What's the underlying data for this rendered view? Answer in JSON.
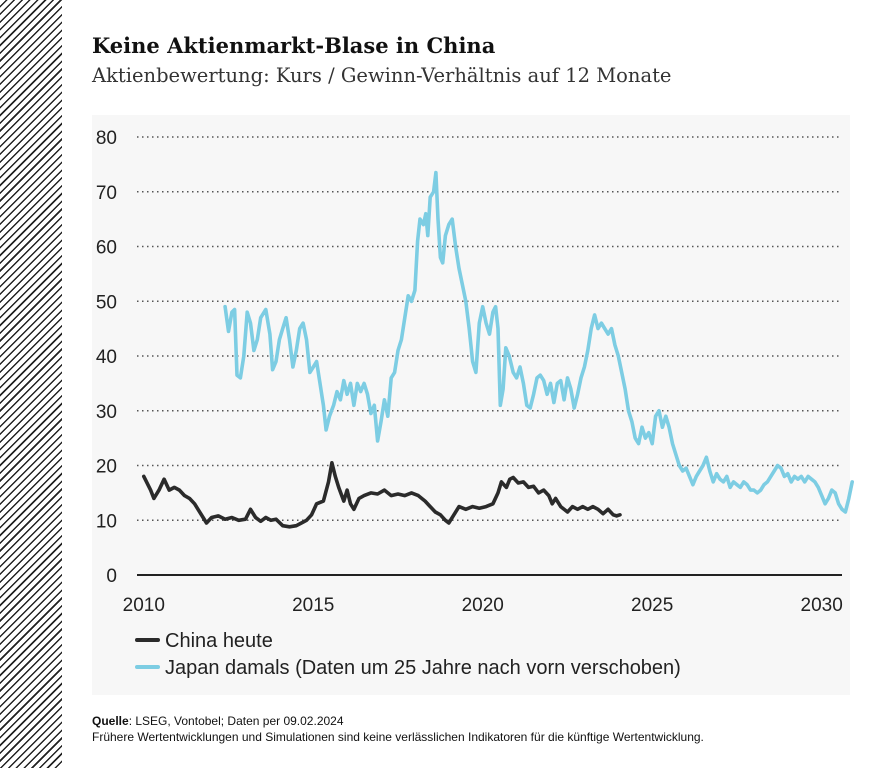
{
  "title": "Keine Aktienmarkt-Blase in China",
  "subtitle": "Aktienbewertung: Kurs / Gewinn-Verhältnis auf 12 Monate",
  "source_label": "Quelle",
  "source_text": ": LSEG, Vontobel; Daten per 09.02.2024",
  "disclaimer": "Frühere Wertentwicklungen und Simulationen sind keine verlässlichen Indikatoren für die künftige Wertentwicklung.",
  "colors": {
    "china": "#2b2b2b",
    "japan": "#7dcde3",
    "grid": "#555555",
    "background": "#f7f7f7"
  },
  "chart_data": {
    "type": "line",
    "xlabel": "",
    "ylabel": "",
    "xlim": [
      2009.8,
      2030.6
    ],
    "ylim": [
      0,
      80
    ],
    "x_ticks": [
      2010,
      2015,
      2020,
      2025,
      2030
    ],
    "x_tick_labels": [
      "2010",
      "2015",
      "2020",
      "2025",
      "2030"
    ],
    "y_ticks": [
      0,
      10,
      20,
      30,
      40,
      50,
      60,
      70,
      80
    ],
    "y_tick_labels": [
      "0",
      "10",
      "20",
      "30",
      "40",
      "50",
      "60",
      "70",
      "80"
    ],
    "grid": "horizontal dotted",
    "legend_position": "bottom-left",
    "series": [
      {
        "name": "China heute",
        "color": "#2b2b2b",
        "points": [
          [
            2010.0,
            18
          ],
          [
            2010.2,
            15.5
          ],
          [
            2010.3,
            14
          ],
          [
            2010.45,
            15.5
          ],
          [
            2010.6,
            17.5
          ],
          [
            2010.75,
            15.5
          ],
          [
            2010.9,
            16
          ],
          [
            2011.05,
            15.5
          ],
          [
            2011.2,
            14.5
          ],
          [
            2011.35,
            14
          ],
          [
            2011.5,
            13
          ],
          [
            2011.6,
            12
          ],
          [
            2011.75,
            10.5
          ],
          [
            2011.85,
            9.5
          ],
          [
            2012.0,
            10.5
          ],
          [
            2012.2,
            10.8
          ],
          [
            2012.4,
            10.2
          ],
          [
            2012.6,
            10.5
          ],
          [
            2012.8,
            10
          ],
          [
            2013.0,
            10.2
          ],
          [
            2013.15,
            12
          ],
          [
            2013.3,
            10.5
          ],
          [
            2013.45,
            9.8
          ],
          [
            2013.6,
            10.5
          ],
          [
            2013.75,
            10
          ],
          [
            2013.9,
            10.2
          ],
          [
            2014.1,
            9
          ],
          [
            2014.3,
            8.8
          ],
          [
            2014.5,
            9
          ],
          [
            2014.65,
            9.5
          ],
          [
            2014.8,
            10
          ],
          [
            2014.95,
            11
          ],
          [
            2015.1,
            13
          ],
          [
            2015.3,
            13.5
          ],
          [
            2015.45,
            17
          ],
          [
            2015.55,
            20.5
          ],
          [
            2015.65,
            18
          ],
          [
            2015.75,
            16
          ],
          [
            2015.9,
            13.5
          ],
          [
            2016.0,
            15.5
          ],
          [
            2016.1,
            13
          ],
          [
            2016.2,
            12
          ],
          [
            2016.35,
            14
          ],
          [
            2016.5,
            14.5
          ],
          [
            2016.7,
            15
          ],
          [
            2016.9,
            14.8
          ],
          [
            2017.1,
            15.5
          ],
          [
            2017.3,
            14.5
          ],
          [
            2017.5,
            14.8
          ],
          [
            2017.7,
            14.5
          ],
          [
            2017.9,
            15
          ],
          [
            2018.1,
            14.5
          ],
          [
            2018.3,
            13.5
          ],
          [
            2018.45,
            12.5
          ],
          [
            2018.6,
            11.5
          ],
          [
            2018.75,
            11
          ],
          [
            2018.9,
            10
          ],
          [
            2019.0,
            9.5
          ],
          [
            2019.15,
            11
          ],
          [
            2019.3,
            12.5
          ],
          [
            2019.5,
            12
          ],
          [
            2019.7,
            12.5
          ],
          [
            2019.9,
            12.2
          ],
          [
            2020.1,
            12.5
          ],
          [
            2020.3,
            13
          ],
          [
            2020.45,
            15
          ],
          [
            2020.55,
            17
          ],
          [
            2020.7,
            16
          ],
          [
            2020.8,
            17.5
          ],
          [
            2020.9,
            17.8
          ],
          [
            2021.05,
            16.8
          ],
          [
            2021.2,
            17
          ],
          [
            2021.35,
            16
          ],
          [
            2021.5,
            16.2
          ],
          [
            2021.65,
            15
          ],
          [
            2021.8,
            15.5
          ],
          [
            2021.95,
            14.5
          ],
          [
            2022.05,
            13
          ],
          [
            2022.15,
            14
          ],
          [
            2022.3,
            12.5
          ],
          [
            2022.5,
            11.5
          ],
          [
            2022.65,
            12.5
          ],
          [
            2022.8,
            12
          ],
          [
            2022.95,
            12.5
          ],
          [
            2023.1,
            12
          ],
          [
            2023.25,
            12.5
          ],
          [
            2023.4,
            12
          ],
          [
            2023.55,
            11.2
          ],
          [
            2023.7,
            12
          ],
          [
            2023.85,
            11
          ],
          [
            2023.95,
            10.8
          ],
          [
            2024.05,
            11
          ]
        ]
      },
      {
        "name": "Japan damals (Daten um 25 Jahre nach vorn verschoben)",
        "color": "#7dcde3",
        "points": [
          [
            2012.4,
            49
          ],
          [
            2012.5,
            44.5
          ],
          [
            2012.6,
            48
          ],
          [
            2012.68,
            48.5
          ],
          [
            2012.75,
            36.5
          ],
          [
            2012.85,
            36
          ],
          [
            2012.95,
            40
          ],
          [
            2013.05,
            48
          ],
          [
            2013.15,
            46
          ],
          [
            2013.25,
            41
          ],
          [
            2013.35,
            43
          ],
          [
            2013.45,
            47
          ],
          [
            2013.6,
            48.5
          ],
          [
            2013.72,
            44
          ],
          [
            2013.8,
            37.5
          ],
          [
            2013.9,
            39
          ],
          [
            2014.0,
            43
          ],
          [
            2014.1,
            45
          ],
          [
            2014.2,
            47
          ],
          [
            2014.3,
            43
          ],
          [
            2014.4,
            38
          ],
          [
            2014.5,
            41
          ],
          [
            2014.6,
            45
          ],
          [
            2014.7,
            46
          ],
          [
            2014.8,
            43
          ],
          [
            2014.9,
            37
          ],
          [
            2015.0,
            38
          ],
          [
            2015.1,
            39
          ],
          [
            2015.2,
            35
          ],
          [
            2015.3,
            31
          ],
          [
            2015.38,
            26.5
          ],
          [
            2015.48,
            29
          ],
          [
            2015.6,
            31
          ],
          [
            2015.7,
            33.5
          ],
          [
            2015.8,
            32
          ],
          [
            2015.9,
            35.5
          ],
          [
            2016.0,
            33
          ],
          [
            2016.1,
            35
          ],
          [
            2016.2,
            31
          ],
          [
            2016.3,
            35
          ],
          [
            2016.4,
            33.5
          ],
          [
            2016.5,
            35
          ],
          [
            2016.6,
            33
          ],
          [
            2016.7,
            29.5
          ],
          [
            2016.8,
            31
          ],
          [
            2016.9,
            24.5
          ],
          [
            2017.0,
            28
          ],
          [
            2017.1,
            32
          ],
          [
            2017.2,
            29
          ],
          [
            2017.3,
            36
          ],
          [
            2017.4,
            37
          ],
          [
            2017.5,
            41
          ],
          [
            2017.6,
            43
          ],
          [
            2017.7,
            47
          ],
          [
            2017.8,
            51
          ],
          [
            2017.9,
            50
          ],
          [
            2018.0,
            52
          ],
          [
            2018.08,
            61
          ],
          [
            2018.15,
            65
          ],
          [
            2018.25,
            64
          ],
          [
            2018.32,
            66
          ],
          [
            2018.38,
            62
          ],
          [
            2018.45,
            69
          ],
          [
            2018.55,
            70
          ],
          [
            2018.62,
            73.5
          ],
          [
            2018.68,
            65
          ],
          [
            2018.75,
            58
          ],
          [
            2018.82,
            57
          ],
          [
            2018.9,
            62
          ],
          [
            2019.0,
            64
          ],
          [
            2019.1,
            65
          ],
          [
            2019.2,
            60
          ],
          [
            2019.3,
            56
          ],
          [
            2019.4,
            53
          ],
          [
            2019.5,
            50
          ],
          [
            2019.6,
            45
          ],
          [
            2019.7,
            39
          ],
          [
            2019.8,
            37
          ],
          [
            2019.9,
            46
          ],
          [
            2020.0,
            49
          ],
          [
            2020.1,
            46
          ],
          [
            2020.2,
            44
          ],
          [
            2020.3,
            48
          ],
          [
            2020.38,
            49
          ],
          [
            2020.45,
            45
          ],
          [
            2020.52,
            31
          ],
          [
            2020.6,
            34
          ],
          [
            2020.68,
            41.5
          ],
          [
            2020.78,
            40
          ],
          [
            2020.9,
            37
          ],
          [
            2021.0,
            36
          ],
          [
            2021.1,
            38
          ],
          [
            2021.2,
            35
          ],
          [
            2021.3,
            31
          ],
          [
            2021.4,
            30.5
          ],
          [
            2021.5,
            33
          ],
          [
            2021.6,
            36
          ],
          [
            2021.7,
            36.5
          ],
          [
            2021.8,
            35.5
          ],
          [
            2021.9,
            33
          ],
          [
            2022.0,
            35
          ],
          [
            2022.1,
            31.5
          ],
          [
            2022.2,
            35
          ],
          [
            2022.3,
            35.5
          ],
          [
            2022.4,
            32
          ],
          [
            2022.5,
            36
          ],
          [
            2022.6,
            34
          ],
          [
            2022.7,
            30.5
          ],
          [
            2022.8,
            33
          ],
          [
            2022.9,
            36
          ],
          [
            2023.0,
            38
          ],
          [
            2023.1,
            41
          ],
          [
            2023.2,
            45
          ],
          [
            2023.3,
            47.5
          ],
          [
            2023.4,
            45
          ],
          [
            2023.5,
            46
          ],
          [
            2023.6,
            45
          ],
          [
            2023.7,
            44
          ],
          [
            2023.8,
            45
          ],
          [
            2023.9,
            42
          ],
          [
            2024.0,
            40
          ],
          [
            2024.1,
            37
          ],
          [
            2024.2,
            34
          ],
          [
            2024.3,
            30
          ],
          [
            2024.4,
            28
          ],
          [
            2024.5,
            25
          ],
          [
            2024.6,
            24
          ],
          [
            2024.7,
            27
          ],
          [
            2024.8,
            25
          ],
          [
            2024.9,
            26
          ],
          [
            2025.0,
            24
          ],
          [
            2025.1,
            29
          ],
          [
            2025.2,
            30
          ],
          [
            2025.3,
            27
          ],
          [
            2025.4,
            29
          ],
          [
            2025.5,
            27
          ],
          [
            2025.6,
            24
          ],
          [
            2025.7,
            22
          ],
          [
            2025.8,
            20
          ],
          [
            2025.9,
            19
          ],
          [
            2026.0,
            19.5
          ],
          [
            2026.1,
            18
          ],
          [
            2026.2,
            16.5
          ],
          [
            2026.3,
            18
          ],
          [
            2026.4,
            19
          ],
          [
            2026.5,
            20
          ],
          [
            2026.6,
            21.5
          ],
          [
            2026.7,
            19
          ],
          [
            2026.8,
            17
          ],
          [
            2026.9,
            18.5
          ],
          [
            2027.0,
            17.5
          ],
          [
            2027.1,
            17
          ],
          [
            2027.2,
            18
          ],
          [
            2027.3,
            16
          ],
          [
            2027.4,
            17
          ],
          [
            2027.5,
            16.5
          ],
          [
            2027.6,
            16
          ],
          [
            2027.7,
            17
          ],
          [
            2027.8,
            16.5
          ],
          [
            2027.9,
            15.5
          ],
          [
            2028.0,
            15.5
          ],
          [
            2028.1,
            15
          ],
          [
            2028.2,
            15.5
          ],
          [
            2028.3,
            16.5
          ],
          [
            2028.4,
            17
          ],
          [
            2028.5,
            18
          ],
          [
            2028.6,
            19
          ],
          [
            2028.7,
            20
          ],
          [
            2028.8,
            19.5
          ],
          [
            2028.9,
            18
          ],
          [
            2029.0,
            18.5
          ],
          [
            2029.1,
            17
          ],
          [
            2029.2,
            18
          ],
          [
            2029.3,
            17.5
          ],
          [
            2029.4,
            18
          ],
          [
            2029.5,
            17
          ],
          [
            2029.6,
            18
          ],
          [
            2029.7,
            17.5
          ],
          [
            2029.8,
            17
          ],
          [
            2029.9,
            16
          ],
          [
            2030.0,
            14.5
          ],
          [
            2030.1,
            13
          ],
          [
            2030.2,
            14
          ],
          [
            2030.3,
            15.5
          ],
          [
            2030.4,
            15
          ],
          [
            2030.5,
            13
          ],
          [
            2030.6,
            12
          ],
          [
            2030.7,
            11.5
          ],
          [
            2030.8,
            14
          ],
          [
            2030.9,
            17
          ]
        ]
      }
    ]
  }
}
